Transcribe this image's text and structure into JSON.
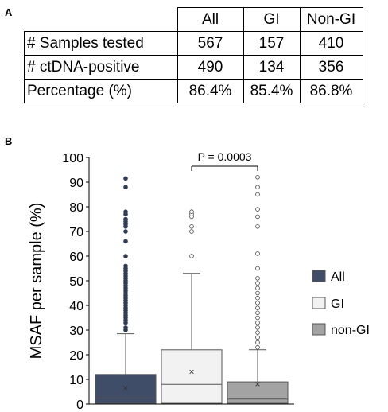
{
  "panels": {
    "a": "A",
    "b": "B"
  },
  "table": {
    "columns": [
      "All",
      "GI",
      "Non-GI"
    ],
    "rows": [
      {
        "label": "# Samples tested",
        "values": [
          "567",
          "157",
          "410"
        ]
      },
      {
        "label": "# ctDNA-positive",
        "values": [
          "490",
          "134",
          "356"
        ]
      },
      {
        "label": "Percentage (%)",
        "values": [
          "86.4%",
          "85.4%",
          "86.8%"
        ]
      }
    ]
  },
  "chart_data": {
    "type": "box",
    "ylabel": "MSAF per sample (%)",
    "ylim": [
      0,
      100
    ],
    "yticks": [
      0,
      10,
      20,
      30,
      40,
      50,
      60,
      70,
      80,
      90,
      100
    ],
    "grid": false,
    "legend_position": "right",
    "annotation": "P = 0.0003",
    "series": [
      {
        "name": "All",
        "color": "#3f4d68",
        "point_color": "#2f3d58",
        "q1": 0.3,
        "median": 2.5,
        "q3": 12,
        "whisker_high": 28.5,
        "mean": 6.5,
        "outliers": [
          30,
          31,
          33,
          34,
          35,
          36,
          37,
          38,
          39,
          40,
          41,
          42,
          43,
          44,
          45,
          46,
          47,
          48,
          49,
          50,
          51,
          52,
          53,
          54,
          55,
          56,
          60,
          66,
          70,
          72,
          73,
          74,
          75,
          77,
          78,
          88,
          91.5
        ]
      },
      {
        "name": "GI",
        "color": "#f2f2f2",
        "point_color": "#ffffff",
        "q1": 0.3,
        "median": 8,
        "q3": 22,
        "whisker_high": 53,
        "mean": 13,
        "outliers": [
          60,
          70,
          72,
          76,
          77,
          78
        ]
      },
      {
        "name": "non-GI",
        "color": "#a3a3a3",
        "point_color": "#ffffff",
        "q1": 0.3,
        "median": 2,
        "q3": 9,
        "whisker_high": 22,
        "mean": 8,
        "outliers": [
          23,
          25,
          27,
          29,
          31,
          33,
          35,
          37,
          39,
          41,
          43,
          45,
          47,
          49,
          51,
          55,
          61,
          72,
          76,
          79,
          85,
          88,
          92
        ]
      }
    ]
  }
}
